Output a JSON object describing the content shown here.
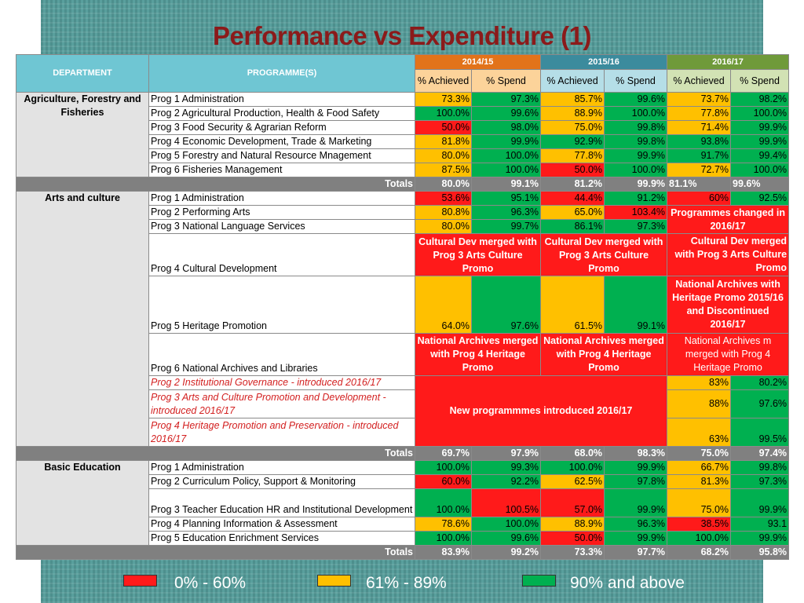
{
  "title": "Performance vs Expenditure (1)",
  "headers": {
    "department": "DEPARTMENT",
    "programmes": "PROGRAMME(S)",
    "years": [
      "2014/15",
      "2015/16",
      "2016/17"
    ],
    "achieved": "% Achieved",
    "spend1": "%  Spend",
    "spend": "% Spend"
  },
  "totals_label": "Totals",
  "agri": {
    "dept": "Agriculture, Forestry and Fisheries",
    "rows": [
      {
        "prog": "Prog 1 Administration",
        "v": [
          "73.3%",
          "97.3%",
          "85.7%",
          "99.6%",
          "73.7%",
          "98.2%"
        ]
      },
      {
        "prog": "Prog 2 Agricultural Production, Health & Food Safety",
        "v": [
          "100.0%",
          "99.6%",
          "88.9%",
          "100.0%",
          "77.8%",
          "100.0%"
        ]
      },
      {
        "prog": "Prog 3 Food Security & Agrarian Reform",
        "v": [
          "50.0%",
          "98.0%",
          "75.0%",
          "99.8%",
          "71.4%",
          "99.9%"
        ]
      },
      {
        "prog": "Prog 4 Economic Development, Trade  & Marketing",
        "v": [
          "81.8%",
          "99.9%",
          "92.9%",
          "99.8%",
          "93.8%",
          "99.9%"
        ]
      },
      {
        "prog": "Prog 5 Forestry and Natural Resource Mnagement",
        "v": [
          "80.0%",
          "100.0%",
          "77.8%",
          "99.9%",
          "91.7%",
          "99.4%"
        ]
      },
      {
        "prog": "Prog 6 Fisheries Management",
        "v": [
          "87.5%",
          "100.0%",
          "50.0%",
          "100.0%",
          "72.7%",
          "100.0%"
        ]
      }
    ],
    "totals": [
      "80.0%",
      "99.1%",
      "81.2%",
      "99.9%",
      "81.1%",
      "99.6%"
    ]
  },
  "arts": {
    "dept": "Arts and culture",
    "p1": {
      "prog": "Prog 1 Administration",
      "v": [
        "53.6%",
        "95.1%",
        "44.4%",
        "91.2%",
        "60%",
        "92.5%"
      ]
    },
    "p2": {
      "prog": "Prog 2 Performing Arts",
      "v": [
        "80.8%",
        "96.3%",
        "65.0%",
        "103.4%"
      ]
    },
    "p3": {
      "prog": "Prog 3 National Language Services",
      "v": [
        "80.0%",
        "99.7%",
        "86.1%",
        "97.3%"
      ]
    },
    "changed_note": "Programmes changed in 2016/17",
    "p4": {
      "prog": "Prog 4 Cultural Development",
      "note1": "Cultural Dev merged with Prog 3 Arts Culture Promo",
      "note2": "Cultural Dev merged with Prog 3 Arts Culture Promo",
      "note3": "Cultural Dev merged with Prog 3 Arts Culture Promo"
    },
    "p5": {
      "prog": "Prog 5 Heritage Promotion",
      "v": [
        "64.0%",
        "97.6%",
        "61.5%",
        "99.1%"
      ],
      "note3": "National Archives with Heritage Promo 2015/16 and Discontinued 2016/17"
    },
    "p6": {
      "prog": "Prog 6 National Archives and Libraries",
      "note1": "National Archives merged with Prog 4 Heritage Promo",
      "note2": "National Archives merged with Prog 4 Heritage Promo",
      "note3": "National Archives m merged with Prog 4 Heritage Promo"
    },
    "new": [
      {
        "prog": "Prog 2 Institutional Governance - introduced 2016/17",
        "v": [
          "83%",
          "80.2%"
        ]
      },
      {
        "prog": "Prog 3 Arts and Culture Promotion and Development  - introduced 2016/17",
        "v": [
          "88%",
          "97.6%"
        ]
      },
      {
        "prog": "Prog 4 Heritage Promotion and Preservation - introduced 2016/17",
        "v": [
          "63%",
          "99.5%"
        ]
      }
    ],
    "new_note": "New programmmes introduced 2016/17",
    "totals": [
      "69.7%",
      "97.9%",
      "68.0%",
      "98.3%",
      "75.0%",
      "97.4%"
    ]
  },
  "edu": {
    "dept": "Basic Education",
    "rows": [
      {
        "prog": "Prog 1 Administration",
        "v": [
          "100.0%",
          "99.3%",
          "100.0%",
          "99.9%",
          "66.7%",
          "99.8%"
        ]
      },
      {
        "prog": "Prog 2 Curriculum Policy, Support & Monitoring",
        "v": [
          "60.0%",
          "92.2%",
          "62.5%",
          "97.8%",
          "81.3%",
          "97.3%"
        ]
      },
      {
        "prog": "Prog 3 Teacher Education HR and Institutional Development",
        "v": [
          "100.0%",
          "100.5%",
          "57.0%",
          "99.9%",
          "75.0%",
          "99.9%"
        ]
      },
      {
        "prog": "Prog 4 Planning Information & Assessment",
        "v": [
          "78.6%",
          "100.0%",
          "88.9%",
          "96.3%",
          "38.5%",
          "93.1"
        ]
      },
      {
        "prog": "Prog 5 Education Enrichment Services",
        "v": [
          "100.0%",
          "99.6%",
          "50.0%",
          "99.9%",
          "100.0%",
          "99.9%"
        ]
      }
    ],
    "totals": [
      "83.9%",
      "99.2%",
      "73.3%",
      "97.7%",
      "68.2%",
      "95.8%"
    ]
  },
  "legend": [
    {
      "label": "0% - 60%",
      "color": "#ff1a1a"
    },
    {
      "label": "61% - 89%",
      "color": "#ffc000"
    },
    {
      "label": "90% and above",
      "color": "#00b050"
    }
  ]
}
